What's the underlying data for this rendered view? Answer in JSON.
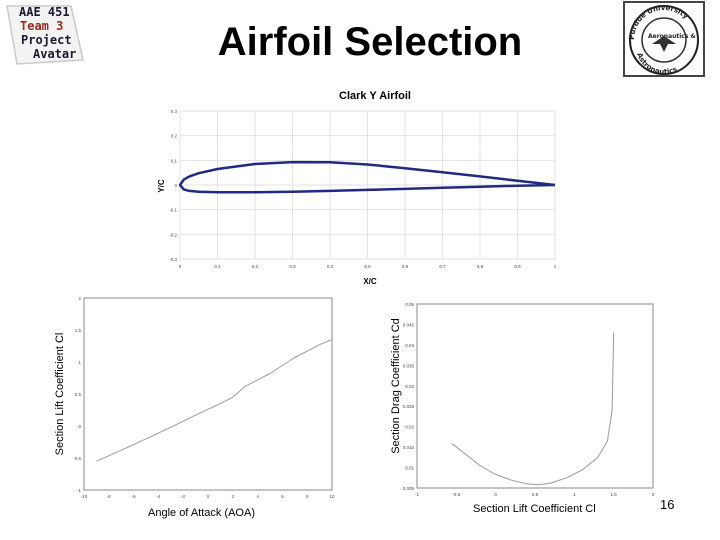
{
  "logo": {
    "line1": "AAE 451",
    "line2": "Team 3",
    "line3": "Project",
    "line4": "Avatar"
  },
  "title": "Airfoil Selection",
  "seal": {
    "text_top": "Purdue University",
    "text_left": "Aeronautics &",
    "text_bottom": "Astronautics"
  },
  "page_number": "16",
  "colors": {
    "airfoil_line": "#1f2a80",
    "plot_line": "#9a9a9a",
    "grid": "#e2e2e2",
    "logo_red": "#9e2a1e"
  },
  "chart_data": [
    {
      "type": "line",
      "title": "Clark Y Airfoil",
      "xlabel": "X/C",
      "ylabel": "Y/C",
      "xlim": [
        0,
        1
      ],
      "ylim": [
        -0.3,
        0.3
      ],
      "x_ticks": [
        "0",
        "0.1",
        "0.2",
        "0.3",
        "0.4",
        "0.5",
        "0.6",
        "0.7",
        "0.8",
        "0.9",
        "1"
      ],
      "y_ticks": [
        "0.3",
        "0.2",
        "0.1",
        "0",
        "-0.1",
        "-0.2",
        "-0.3"
      ],
      "grid": true,
      "series": [
        {
          "x": [
            1.0,
            0.9,
            0.8,
            0.7,
            0.6,
            0.5,
            0.4,
            0.3,
            0.2,
            0.1,
            0.05,
            0.025,
            0.01,
            0.0,
            0.01,
            0.025,
            0.05,
            0.1,
            0.2,
            0.3,
            0.4,
            0.5,
            0.6,
            0.7,
            0.8,
            0.9,
            1.0
          ],
          "y": [
            0.0,
            0.017,
            0.035,
            0.052,
            0.068,
            0.083,
            0.092,
            0.093,
            0.085,
            0.065,
            0.048,
            0.035,
            0.022,
            0.0,
            -0.018,
            -0.024,
            -0.027,
            -0.029,
            -0.029,
            -0.027,
            -0.024,
            -0.02,
            -0.016,
            -0.011,
            -0.007,
            -0.003,
            0.0
          ]
        }
      ]
    },
    {
      "type": "line",
      "title": "",
      "xlabel": "Angle of Attack (AOA)",
      "ylabel": "Section Lift Coefficient Cl",
      "xlim": [
        -10,
        10
      ],
      "ylim": [
        -1,
        2
      ],
      "x_ticks": [
        "-10",
        "-8",
        "-6",
        "-4",
        "-2",
        "0",
        "2",
        "4",
        "6",
        "8",
        "10"
      ],
      "y_ticks": [
        "2",
        "1.5",
        "1",
        "0.5",
        "0",
        "-0.5",
        "-1"
      ],
      "grid": false,
      "series": [
        {
          "x": [
            -9,
            -7,
            -5,
            -3,
            -1,
            1,
            2,
            3,
            5,
            7,
            9,
            10
          ],
          "y": [
            -0.55,
            -0.38,
            -0.2,
            -0.02,
            0.17,
            0.35,
            0.45,
            0.62,
            0.82,
            1.07,
            1.27,
            1.35
          ]
        }
      ]
    },
    {
      "type": "line",
      "title": "",
      "xlabel": "Section Lift Coefficient Cl",
      "ylabel": "Section Drag Coefficient Cd",
      "xlim": [
        -1,
        2
      ],
      "ylim": [
        0.005,
        0.05
      ],
      "x_ticks": [
        "-1",
        "-0.5",
        "0",
        "0.5",
        "1",
        "1.5",
        "2"
      ],
      "y_ticks": [
        "0.05",
        "0.045",
        "0.04",
        "0.035",
        "0.03",
        "0.025",
        "0.02",
        "0.015",
        "0.01",
        "0.005"
      ],
      "grid": false,
      "series": [
        {
          "x": [
            -0.55,
            -0.4,
            -0.2,
            0.0,
            0.2,
            0.4,
            0.55,
            0.7,
            0.9,
            1.1,
            1.3,
            1.42,
            1.48,
            1.5
          ],
          "y": [
            0.0158,
            0.0135,
            0.0105,
            0.0083,
            0.0069,
            0.006,
            0.0058,
            0.0062,
            0.0075,
            0.0094,
            0.0125,
            0.0165,
            0.024,
            0.043
          ]
        }
      ]
    }
  ]
}
